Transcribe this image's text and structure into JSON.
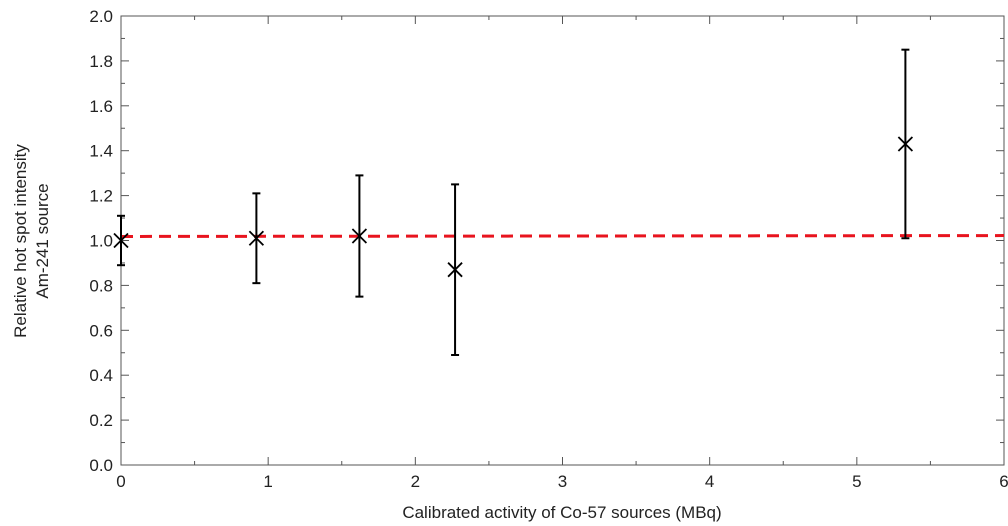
{
  "chart_data": {
    "type": "scatter",
    "title": "",
    "xlabel": "Calibrated activity of Co-57 sources (MBq)",
    "ylabel_lines": [
      "Relative hot spot intensity",
      "Am-241 source"
    ],
    "xlim": [
      0,
      6
    ],
    "ylim": [
      0,
      2
    ],
    "x_ticks": [
      0,
      1,
      2,
      3,
      4,
      5,
      6
    ],
    "x_tick_labels": [
      "0",
      "1",
      "2",
      "3",
      "4",
      "5",
      "6"
    ],
    "y_ticks": [
      0,
      0.2,
      0.4,
      0.6,
      0.8,
      1.0,
      1.2,
      1.4,
      1.6,
      1.8,
      2.0
    ],
    "y_tick_labels": [
      "0.0",
      "0.2",
      "0.4",
      "0.6",
      "0.8",
      "1.0",
      "1.2",
      "1.4",
      "1.6",
      "1.8",
      "2.0"
    ],
    "grid": false,
    "series": [
      {
        "marker": "x",
        "color": "#000000",
        "points": [
          {
            "x": 0.0,
            "y": 1.0,
            "err_low": 0.89,
            "err_high": 1.11
          },
          {
            "x": 0.92,
            "y": 1.01,
            "err_low": 0.81,
            "err_high": 1.21
          },
          {
            "x": 1.62,
            "y": 1.02,
            "err_low": 0.75,
            "err_high": 1.29
          },
          {
            "x": 2.27,
            "y": 0.87,
            "err_low": 0.49,
            "err_high": 1.25
          },
          {
            "x": 5.33,
            "y": 1.43,
            "err_low": 1.01,
            "err_high": 1.85
          }
        ]
      }
    ],
    "fit_line": {
      "style": "dashed",
      "color": "#e8141e",
      "x": [
        0,
        6
      ],
      "y": [
        1.018,
        1.022
      ]
    }
  }
}
